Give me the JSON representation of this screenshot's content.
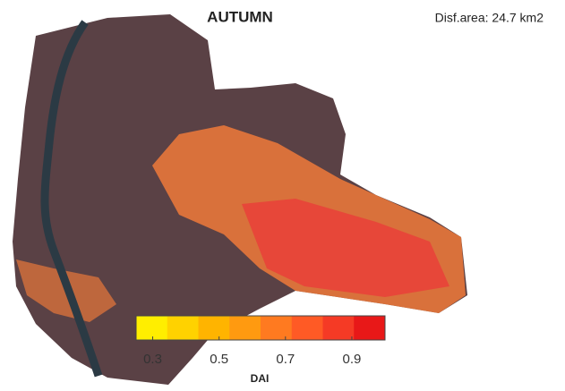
{
  "title": "AUTUMN",
  "annotation": "Disf.area: 24.7 km2",
  "colorbar": {
    "label": "DAI",
    "lim": [
      0.25,
      1.0
    ],
    "ticks": [
      0.3,
      0.5,
      0.7,
      0.9
    ],
    "colors": [
      "#ffee00",
      "#ffd200",
      "#ffb400",
      "#ff9a10",
      "#ff7a20",
      "#ff5a25",
      "#f53a25",
      "#e81818"
    ]
  }
}
